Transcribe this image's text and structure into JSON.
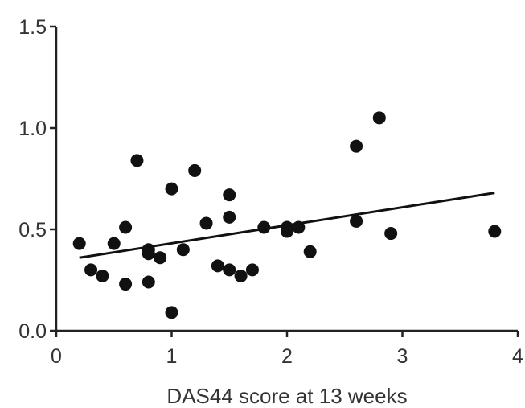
{
  "chart_data": {
    "type": "scatter",
    "xlabel": "DAS44 score at 13 weeks",
    "ylabel": "",
    "xlim": [
      0,
      4
    ],
    "ylim": [
      0,
      1.5
    ],
    "xticks": [
      "0",
      "1",
      "2",
      "3",
      "4"
    ],
    "yticks": [
      "0.0",
      "0.5",
      "1.0",
      "1.5"
    ],
    "grid": false,
    "point_color": "#111111",
    "points": [
      {
        "x": 0.2,
        "y": 0.43
      },
      {
        "x": 0.3,
        "y": 0.3
      },
      {
        "x": 0.4,
        "y": 0.27
      },
      {
        "x": 0.5,
        "y": 0.43
      },
      {
        "x": 0.6,
        "y": 0.51
      },
      {
        "x": 0.6,
        "y": 0.23
      },
      {
        "x": 0.7,
        "y": 0.84
      },
      {
        "x": 0.8,
        "y": 0.4
      },
      {
        "x": 0.8,
        "y": 0.38
      },
      {
        "x": 0.8,
        "y": 0.24
      },
      {
        "x": 0.9,
        "y": 0.36
      },
      {
        "x": 1.0,
        "y": 0.7
      },
      {
        "x": 1.0,
        "y": 0.09
      },
      {
        "x": 1.1,
        "y": 0.4
      },
      {
        "x": 1.2,
        "y": 0.79
      },
      {
        "x": 1.3,
        "y": 0.53
      },
      {
        "x": 1.4,
        "y": 0.32
      },
      {
        "x": 1.5,
        "y": 0.67
      },
      {
        "x": 1.5,
        "y": 0.56
      },
      {
        "x": 1.5,
        "y": 0.3
      },
      {
        "x": 1.6,
        "y": 0.27
      },
      {
        "x": 1.7,
        "y": 0.3
      },
      {
        "x": 1.8,
        "y": 0.51
      },
      {
        "x": 2.0,
        "y": 0.51
      },
      {
        "x": 2.0,
        "y": 0.49
      },
      {
        "x": 2.1,
        "y": 0.51
      },
      {
        "x": 2.2,
        "y": 0.39
      },
      {
        "x": 2.6,
        "y": 0.91
      },
      {
        "x": 2.6,
        "y": 0.54
      },
      {
        "x": 2.8,
        "y": 1.05
      },
      {
        "x": 2.9,
        "y": 0.48
      },
      {
        "x": 3.8,
        "y": 0.49
      }
    ],
    "trendline": {
      "x": [
        0.2,
        3.8
      ],
      "y": [
        0.36,
        0.68
      ]
    }
  }
}
